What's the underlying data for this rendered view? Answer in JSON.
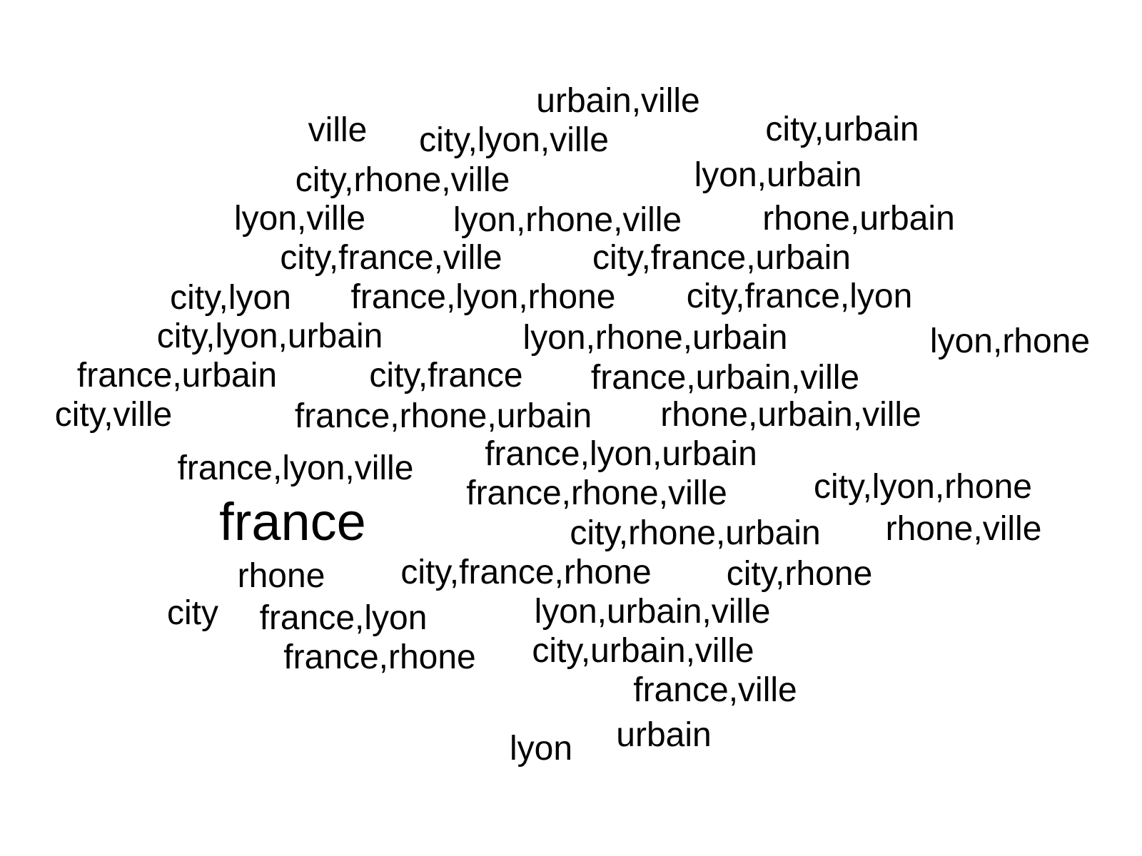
{
  "text_color": "#000000",
  "background": "#ffffff",
  "words": [
    "urbain,ville",
    "ville",
    "city,lyon,ville",
    "city,urbain",
    "city,rhone,ville",
    "lyon,urbain",
    "lyon,ville",
    "lyon,rhone,ville",
    "rhone,urbain",
    "city,france,ville",
    "city,france,urbain",
    "city,lyon",
    "france,lyon,rhone",
    "city,france,lyon",
    "city,lyon,urbain",
    "lyon,rhone,urbain",
    "lyon,rhone",
    "france,urbain",
    "city,france",
    "france,urbain,ville",
    "city,ville",
    "france,rhone,urbain",
    "rhone,urbain,ville",
    "france,lyon,urbain",
    "france,lyon,ville",
    "france,rhone,ville",
    "city,lyon,rhone",
    "france",
    "city,rhone,urbain",
    "rhone,ville",
    "rhone",
    "city,france,rhone",
    "city,rhone",
    "city",
    "france,lyon",
    "lyon,urbain,ville",
    "france,rhone",
    "city,urbain,ville",
    "france,ville",
    "urbain",
    "lyon"
  ]
}
